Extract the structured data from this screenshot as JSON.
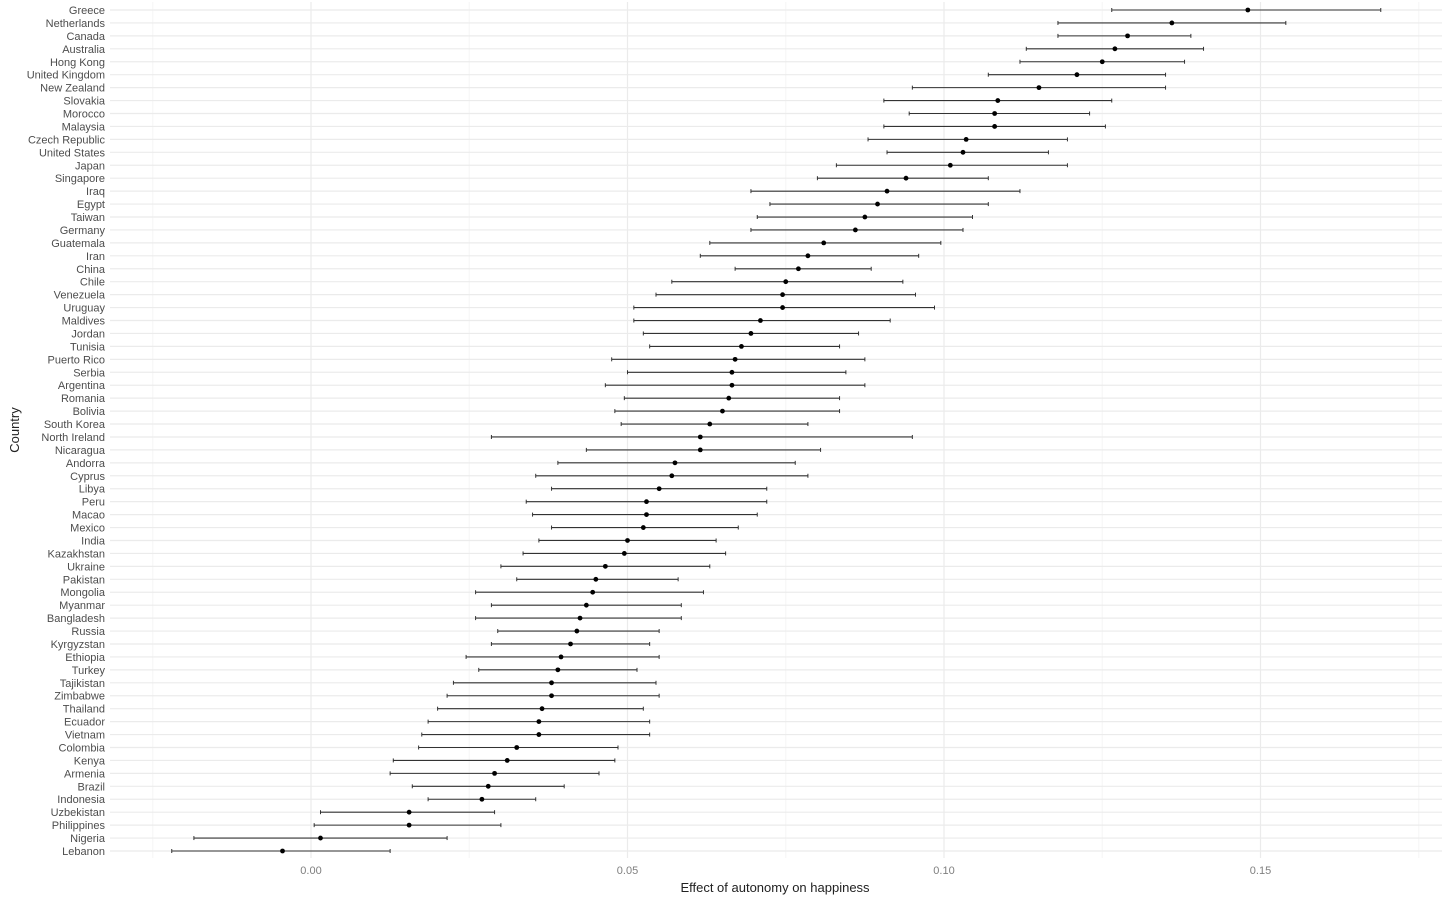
{
  "chart_data": {
    "type": "scatter",
    "subtype": "point-range / coefficient plot with horizontal error bars",
    "title": "",
    "xlabel": "Effect of autonomy on happiness",
    "ylabel": "Country",
    "xlim": [
      -0.025,
      0.175
    ],
    "xticks": [
      0.0,
      0.05,
      0.1,
      0.15
    ],
    "xtick_labels": [
      "0.00",
      "0.05",
      "0.10",
      "0.15"
    ],
    "grid": true,
    "legend": "none",
    "categories": [
      "Greece",
      "Netherlands",
      "Canada",
      "Australia",
      "Hong Kong",
      "United Kingdom",
      "New Zealand",
      "Slovakia",
      "Morocco",
      "Malaysia",
      "Czech Republic",
      "United States",
      "Japan",
      "Singapore",
      "Iraq",
      "Egypt",
      "Taiwan",
      "Germany",
      "Guatemala",
      "Iran",
      "China",
      "Chile",
      "Venezuela",
      "Uruguay",
      "Maldives",
      "Jordan",
      "Tunisia",
      "Puerto Rico",
      "Serbia",
      "Argentina",
      "Romania",
      "Bolivia",
      "South Korea",
      "North Ireland",
      "Nicaragua",
      "Andorra",
      "Cyprus",
      "Libya",
      "Peru",
      "Macao",
      "Mexico",
      "India",
      "Kazakhstan",
      "Ukraine",
      "Pakistan",
      "Mongolia",
      "Myanmar",
      "Bangladesh",
      "Russia",
      "Kyrgyzstan",
      "Ethiopia",
      "Turkey",
      "Tajikistan",
      "Zimbabwe",
      "Thailand",
      "Ecuador",
      "Vietnam",
      "Colombia",
      "Kenya",
      "Armenia",
      "Brazil",
      "Indonesia",
      "Uzbekistan",
      "Philippines",
      "Nigeria",
      "Lebanon"
    ],
    "series": [
      {
        "name": "estimate",
        "values": [
          0.148,
          0.136,
          0.129,
          0.127,
          0.125,
          0.121,
          0.115,
          0.1085,
          0.108,
          0.108,
          0.1035,
          0.103,
          0.101,
          0.094,
          0.091,
          0.0895,
          0.0875,
          0.086,
          0.081,
          0.0785,
          0.077,
          0.075,
          0.0745,
          0.0745,
          0.071,
          0.0695,
          0.068,
          0.067,
          0.0665,
          0.0665,
          0.066,
          0.065,
          0.063,
          0.0615,
          0.0615,
          0.0575,
          0.057,
          0.055,
          0.053,
          0.053,
          0.0525,
          0.05,
          0.0495,
          0.0465,
          0.045,
          0.0445,
          0.0435,
          0.0425,
          0.042,
          0.041,
          0.0395,
          0.039,
          0.038,
          0.038,
          0.0365,
          0.036,
          0.036,
          0.0325,
          0.031,
          0.029,
          0.028,
          0.027,
          0.0155,
          0.0155,
          0.0015,
          -0.0045
        ]
      },
      {
        "name": "ci_low",
        "values": [
          0.1265,
          0.118,
          0.118,
          0.113,
          0.112,
          0.107,
          0.095,
          0.0905,
          0.0945,
          0.0905,
          0.088,
          0.091,
          0.083,
          0.08,
          0.0695,
          0.0725,
          0.0705,
          0.0695,
          0.063,
          0.0615,
          0.067,
          0.057,
          0.0545,
          0.051,
          0.051,
          0.0525,
          0.0535,
          0.0475,
          0.05,
          0.0465,
          0.0495,
          0.048,
          0.049,
          0.0285,
          0.0435,
          0.039,
          0.0355,
          0.038,
          0.034,
          0.035,
          0.038,
          0.036,
          0.0335,
          0.03,
          0.0325,
          0.026,
          0.0285,
          0.026,
          0.0295,
          0.0285,
          0.0245,
          0.0265,
          0.0225,
          0.0215,
          0.02,
          0.0185,
          0.0175,
          0.017,
          0.013,
          0.0125,
          0.016,
          0.0185,
          0.0015,
          0.0005,
          -0.0185,
          -0.022
        ]
      },
      {
        "name": "ci_high",
        "values": [
          0.169,
          0.154,
          0.139,
          0.141,
          0.138,
          0.135,
          0.135,
          0.1265,
          0.123,
          0.1255,
          0.1195,
          0.1165,
          0.1195,
          0.107,
          0.112,
          0.107,
          0.1045,
          0.103,
          0.0995,
          0.096,
          0.0885,
          0.0935,
          0.0955,
          0.0985,
          0.0915,
          0.0865,
          0.0835,
          0.0875,
          0.0845,
          0.0875,
          0.0835,
          0.0835,
          0.0785,
          0.095,
          0.0805,
          0.0765,
          0.0785,
          0.072,
          0.072,
          0.0705,
          0.0675,
          0.064,
          0.0655,
          0.063,
          0.058,
          0.062,
          0.0585,
          0.0585,
          0.055,
          0.0535,
          0.055,
          0.0515,
          0.0545,
          0.055,
          0.0525,
          0.0535,
          0.0535,
          0.0485,
          0.048,
          0.0455,
          0.04,
          0.0355,
          0.029,
          0.03,
          0.0215,
          0.0125
        ]
      }
    ]
  },
  "colors": {
    "background": "#ffffff",
    "grid_major": "#ebebeb",
    "grid_minor": "#f5f5f5",
    "point": "#000000",
    "errorbar": "#333333",
    "tick_text": "#7f7f7f",
    "category_text": "#4d4d4d",
    "axis_title": "#222222"
  }
}
